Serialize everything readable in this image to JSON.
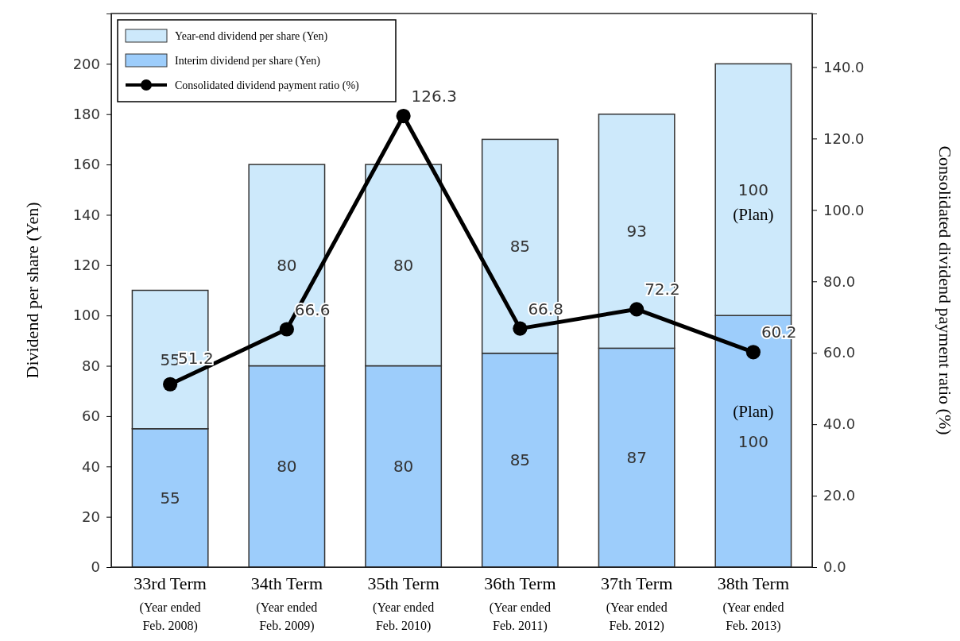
{
  "chart_data": {
    "type": "bar",
    "stacked": true,
    "categories": [
      "33rd Term\n(Year ended\nFeb. 2008)",
      "34th Term\n(Year ended\nFeb. 2009)",
      "35th Term\n(Year ended\nFeb. 2010)",
      "36th Term\n(Year ended\nFeb. 2011)",
      "37th Term\n(Year ended\nFeb. 2012)",
      "38th Term\n(Year ended\nFeb. 2013)"
    ],
    "series": [
      {
        "name": "Interim dividend per share (Yen)",
        "color": "#9dcdfb",
        "values": [
          55,
          80,
          80,
          85,
          87,
          100
        ]
      },
      {
        "name": "Year-end dividend per share (Yen)",
        "color": "#cde9fb",
        "values": [
          55,
          80,
          80,
          85,
          93,
          100
        ]
      },
      {
        "name": "Consolidated dividend payment ratio (%)",
        "type": "line",
        "axis": "y2",
        "color": "#000000",
        "marker": "circle",
        "values": [
          51.2,
          66.6,
          126.3,
          66.8,
          72.2,
          60.2
        ]
      }
    ],
    "ylabel": "Dividend per share (Yen)",
    "y2label": "Consolidated dividend payment ratio (%)",
    "ylim": [
      0,
      220
    ],
    "yticks": [
      0,
      20,
      40,
      60,
      80,
      100,
      120,
      140,
      160,
      180,
      200
    ],
    "y2lim": [
      0,
      155
    ],
    "y2ticks": [
      {
        "value": 0,
        "label": "0.0"
      },
      {
        "value": 20,
        "label": "20.0"
      },
      {
        "value": 40,
        "label": "40.0"
      },
      {
        "value": 60,
        "label": "60.0"
      },
      {
        "value": 80,
        "label": "80.0"
      },
      {
        "value": 100,
        "label": "100.0"
      },
      {
        "value": 120,
        "label": "120.0"
      },
      {
        "value": 140,
        "label": "140.0"
      }
    ],
    "data_labels": true,
    "legend": "top left",
    "grid": false,
    "annotations": [
      "(Plan)",
      "(Plan)"
    ]
  }
}
